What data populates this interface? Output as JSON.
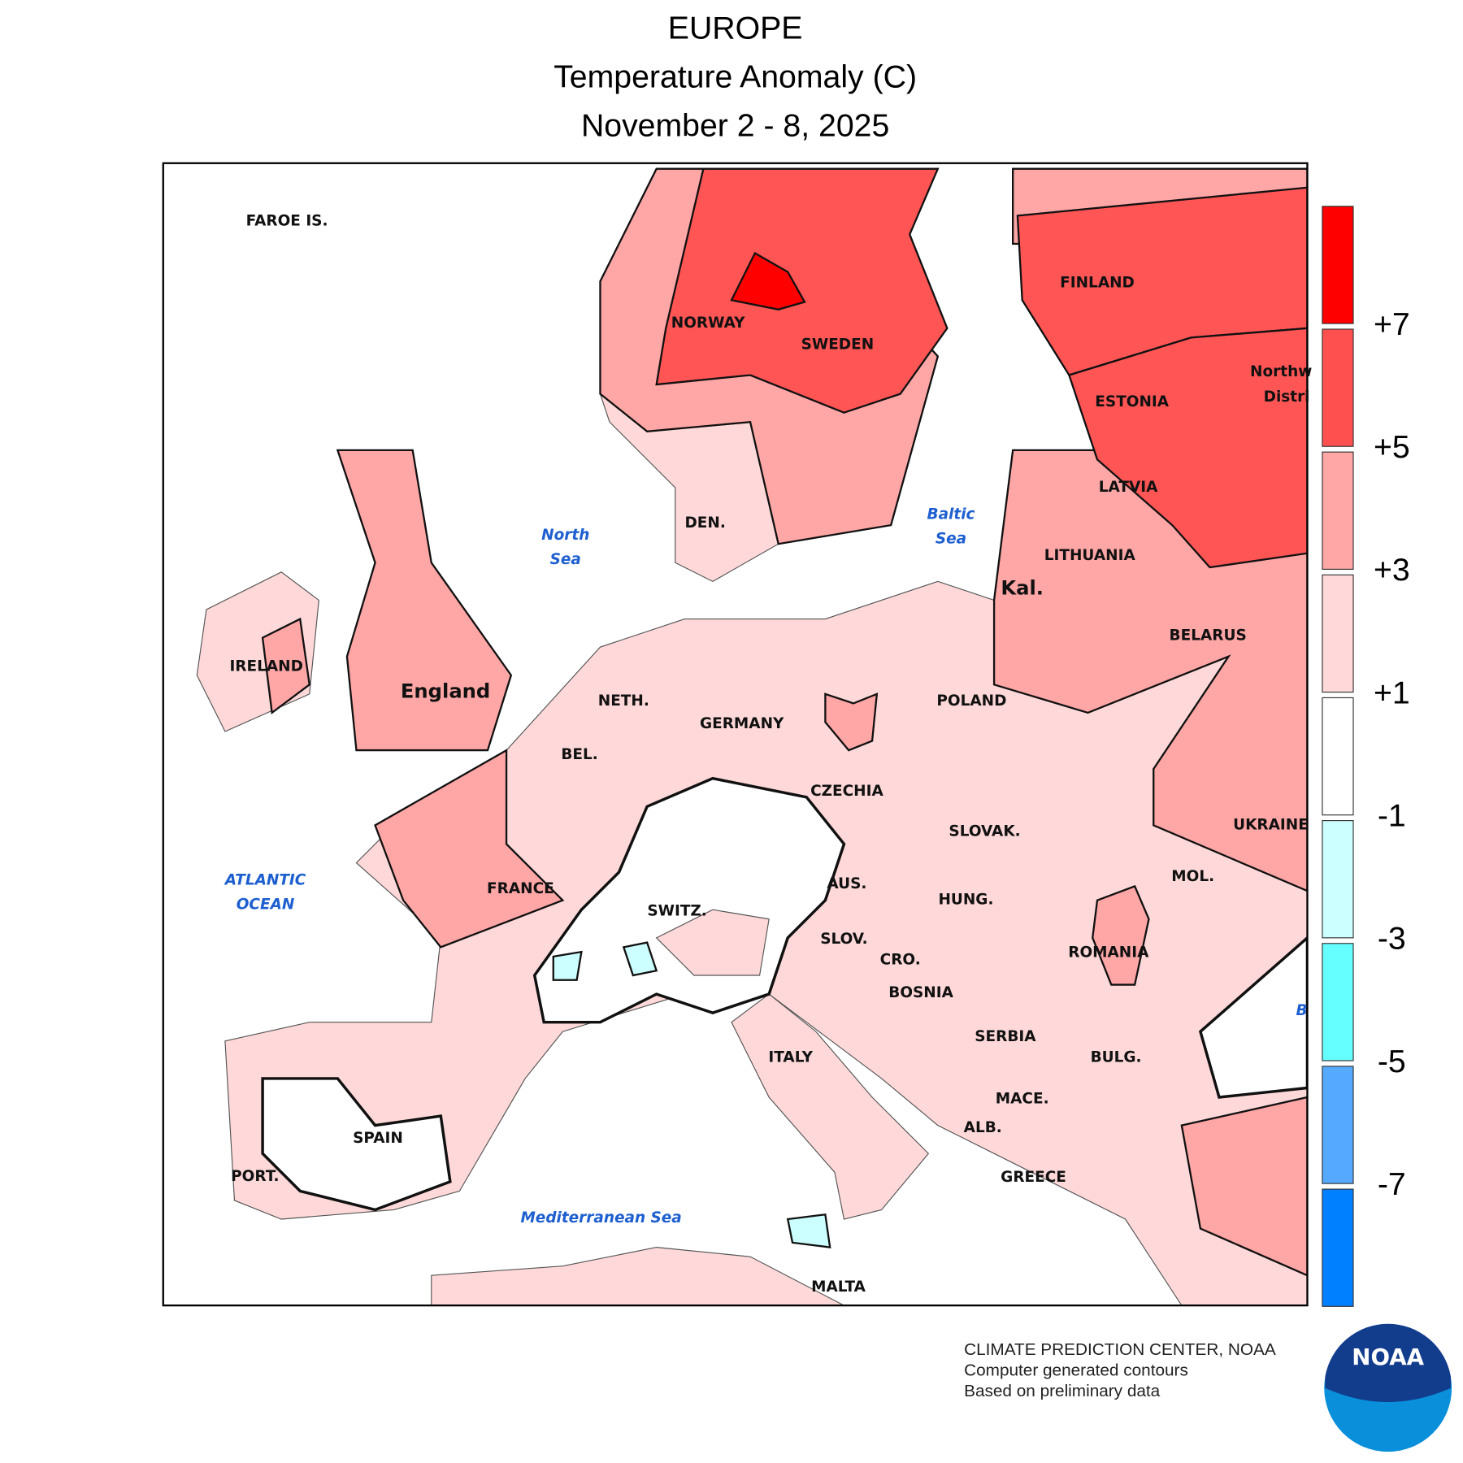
{
  "header": {
    "title": "EUROPE",
    "subtitle": "Temperature Anomaly (C)",
    "dates": "November 2 - 8, 2025"
  },
  "map": {
    "labels": [
      "FAROE IS.",
      "NORWAY",
      "SWEDEN",
      "FINLAND",
      "ESTONIA",
      "LATVIA",
      "LITHUANIA",
      "BELARUS",
      "POLAND",
      "GERMANY",
      "DEN.",
      "NETH.",
      "BEL.",
      "CZECHIA",
      "SLOVAK.",
      "UKRAINE",
      "MOL.",
      "AUS.",
      "HUNG.",
      "SWITZ.",
      "SLOV.",
      "CRO.",
      "ROMANIA",
      "BOSNIA",
      "SERBIA",
      "ITALY",
      "BULG.",
      "MACE.",
      "ALB.",
      "SPAIN",
      "PORT.",
      "GREECE",
      "FRANCE",
      "IRELAND",
      "England",
      "Kal.",
      "MALTA",
      "Northw",
      "Distri"
    ],
    "seas": [
      "North",
      "Sea",
      "Baltic",
      "Sea",
      "ATLANTIC",
      "OCEAN",
      "Mediterranean Sea",
      "B"
    ]
  },
  "legend": {
    "colors": [
      "#ff0000",
      "#ff5050",
      "#ffa6a6",
      "#ffd9d9",
      "#ffffff",
      "#ccffff",
      "#66ffff",
      "#55aaff",
      "#0080ff"
    ],
    "ticks": [
      {
        "value": 7,
        "label": "+7"
      },
      {
        "value": 5,
        "label": "+5"
      },
      {
        "value": 3,
        "label": "+3"
      },
      {
        "value": 1,
        "label": "+1"
      },
      -1,
      -3,
      -5,
      -7
    ]
  },
  "footer": {
    "lines": [
      "CLIMATE PREDICTION CENTER, NOAA",
      "Computer generated contours",
      "Based on preliminary data"
    ],
    "logo": "NOAA"
  }
}
